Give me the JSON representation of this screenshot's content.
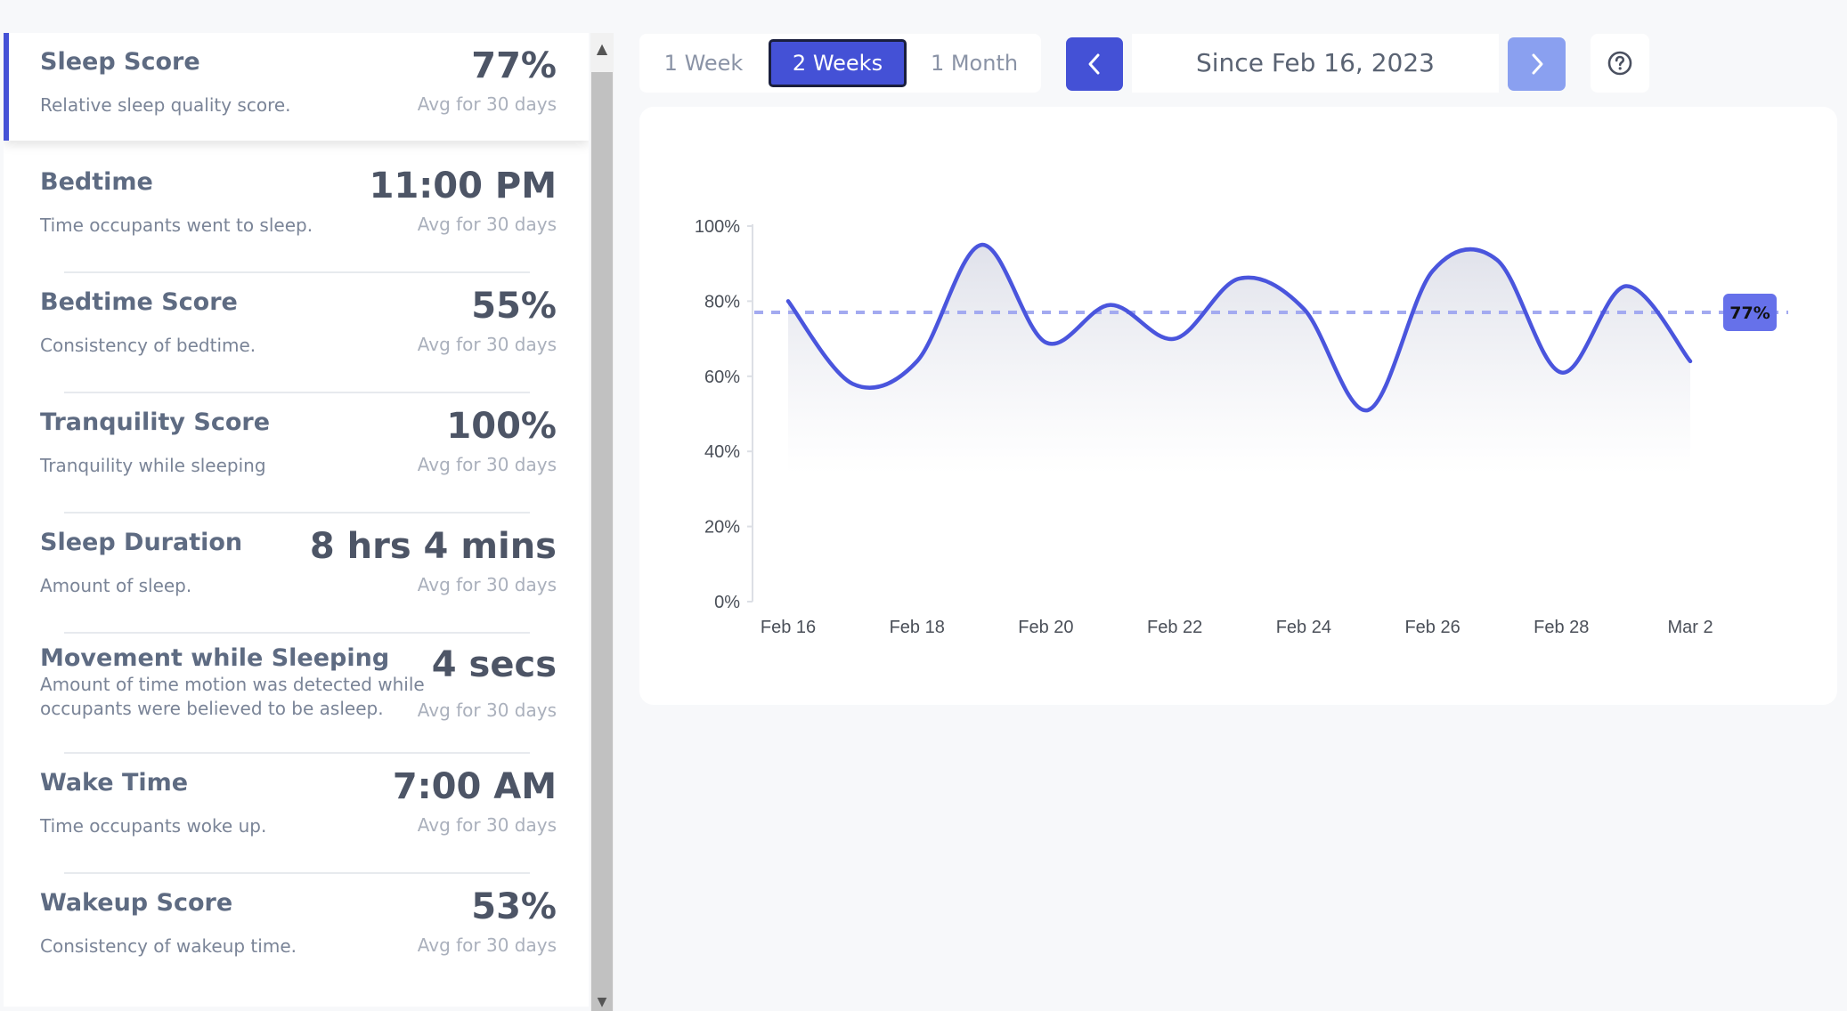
{
  "metrics": [
    {
      "title": "Sleep Score",
      "desc": "Relative sleep quality score.",
      "value": "77%",
      "avg": "Avg for 30 days",
      "active": true
    },
    {
      "title": "Bedtime",
      "desc": "Time occupants went to sleep.",
      "value": "11:00 PM",
      "avg": "Avg for 30 days"
    },
    {
      "title": "Bedtime Score",
      "desc": "Consistency of bedtime.",
      "value": "55%",
      "avg": "Avg for 30 days"
    },
    {
      "title": "Tranquility Score",
      "desc": "Tranquility while sleeping",
      "value": "100%",
      "avg": "Avg for 30 days"
    },
    {
      "title": "Sleep Duration",
      "desc": "Amount of sleep.",
      "value": "8 hrs 4 mins",
      "avg": "Avg for 30 days"
    },
    {
      "title": "Movement while Sleeping",
      "desc": "Amount of time motion was detected while occupants were believed to be asleep.",
      "value": "4 secs",
      "avg": "Avg for 30 days"
    },
    {
      "title": "Wake Time",
      "desc": "Time occupants woke up.",
      "value": "7:00 AM",
      "avg": "Avg for 30 days"
    },
    {
      "title": "Wakeup Score",
      "desc": "Consistency of wakeup time.",
      "value": "53%",
      "avg": "Avg for 30 days"
    }
  ],
  "toolbar": {
    "ranges": [
      "1 Week",
      "2 Weeks",
      "1 Month"
    ],
    "selected_range": "2 Weeks",
    "date_label": "Since Feb 16, 2023",
    "prev_icon": "chevron-left-icon",
    "next_icon": "chevron-right-icon",
    "help_icon": "question-circle-icon"
  },
  "colors": {
    "accent": "#4451d6",
    "line": "#4a55dd",
    "avg_line": "#a3aaf0",
    "badge": "#6671ea"
  },
  "chart_data": {
    "type": "line",
    "title": "",
    "xlabel": "",
    "ylabel": "",
    "x": [
      "Feb 16",
      "Feb 17",
      "Feb 18",
      "Feb 19",
      "Feb 20",
      "Feb 21",
      "Feb 22",
      "Feb 23",
      "Feb 24",
      "Feb 25",
      "Feb 26",
      "Feb 27",
      "Feb 28",
      "Mar 1",
      "Mar 2"
    ],
    "x_ticks": [
      "Feb 16",
      "Feb 18",
      "Feb 20",
      "Feb 22",
      "Feb 24",
      "Feb 26",
      "Feb 28",
      "Mar 2"
    ],
    "series": [
      {
        "values": [
          80,
          58,
          64,
          95,
          69,
          79,
          70,
          86,
          78,
          51,
          88,
          91,
          61,
          84,
          64
        ]
      }
    ],
    "average": 77,
    "average_label": "77%",
    "ylim": [
      0,
      100
    ],
    "y_ticks": [
      "0%",
      "20%",
      "40%",
      "60%",
      "80%",
      "100%"
    ],
    "grid": false,
    "area_fill": true
  }
}
